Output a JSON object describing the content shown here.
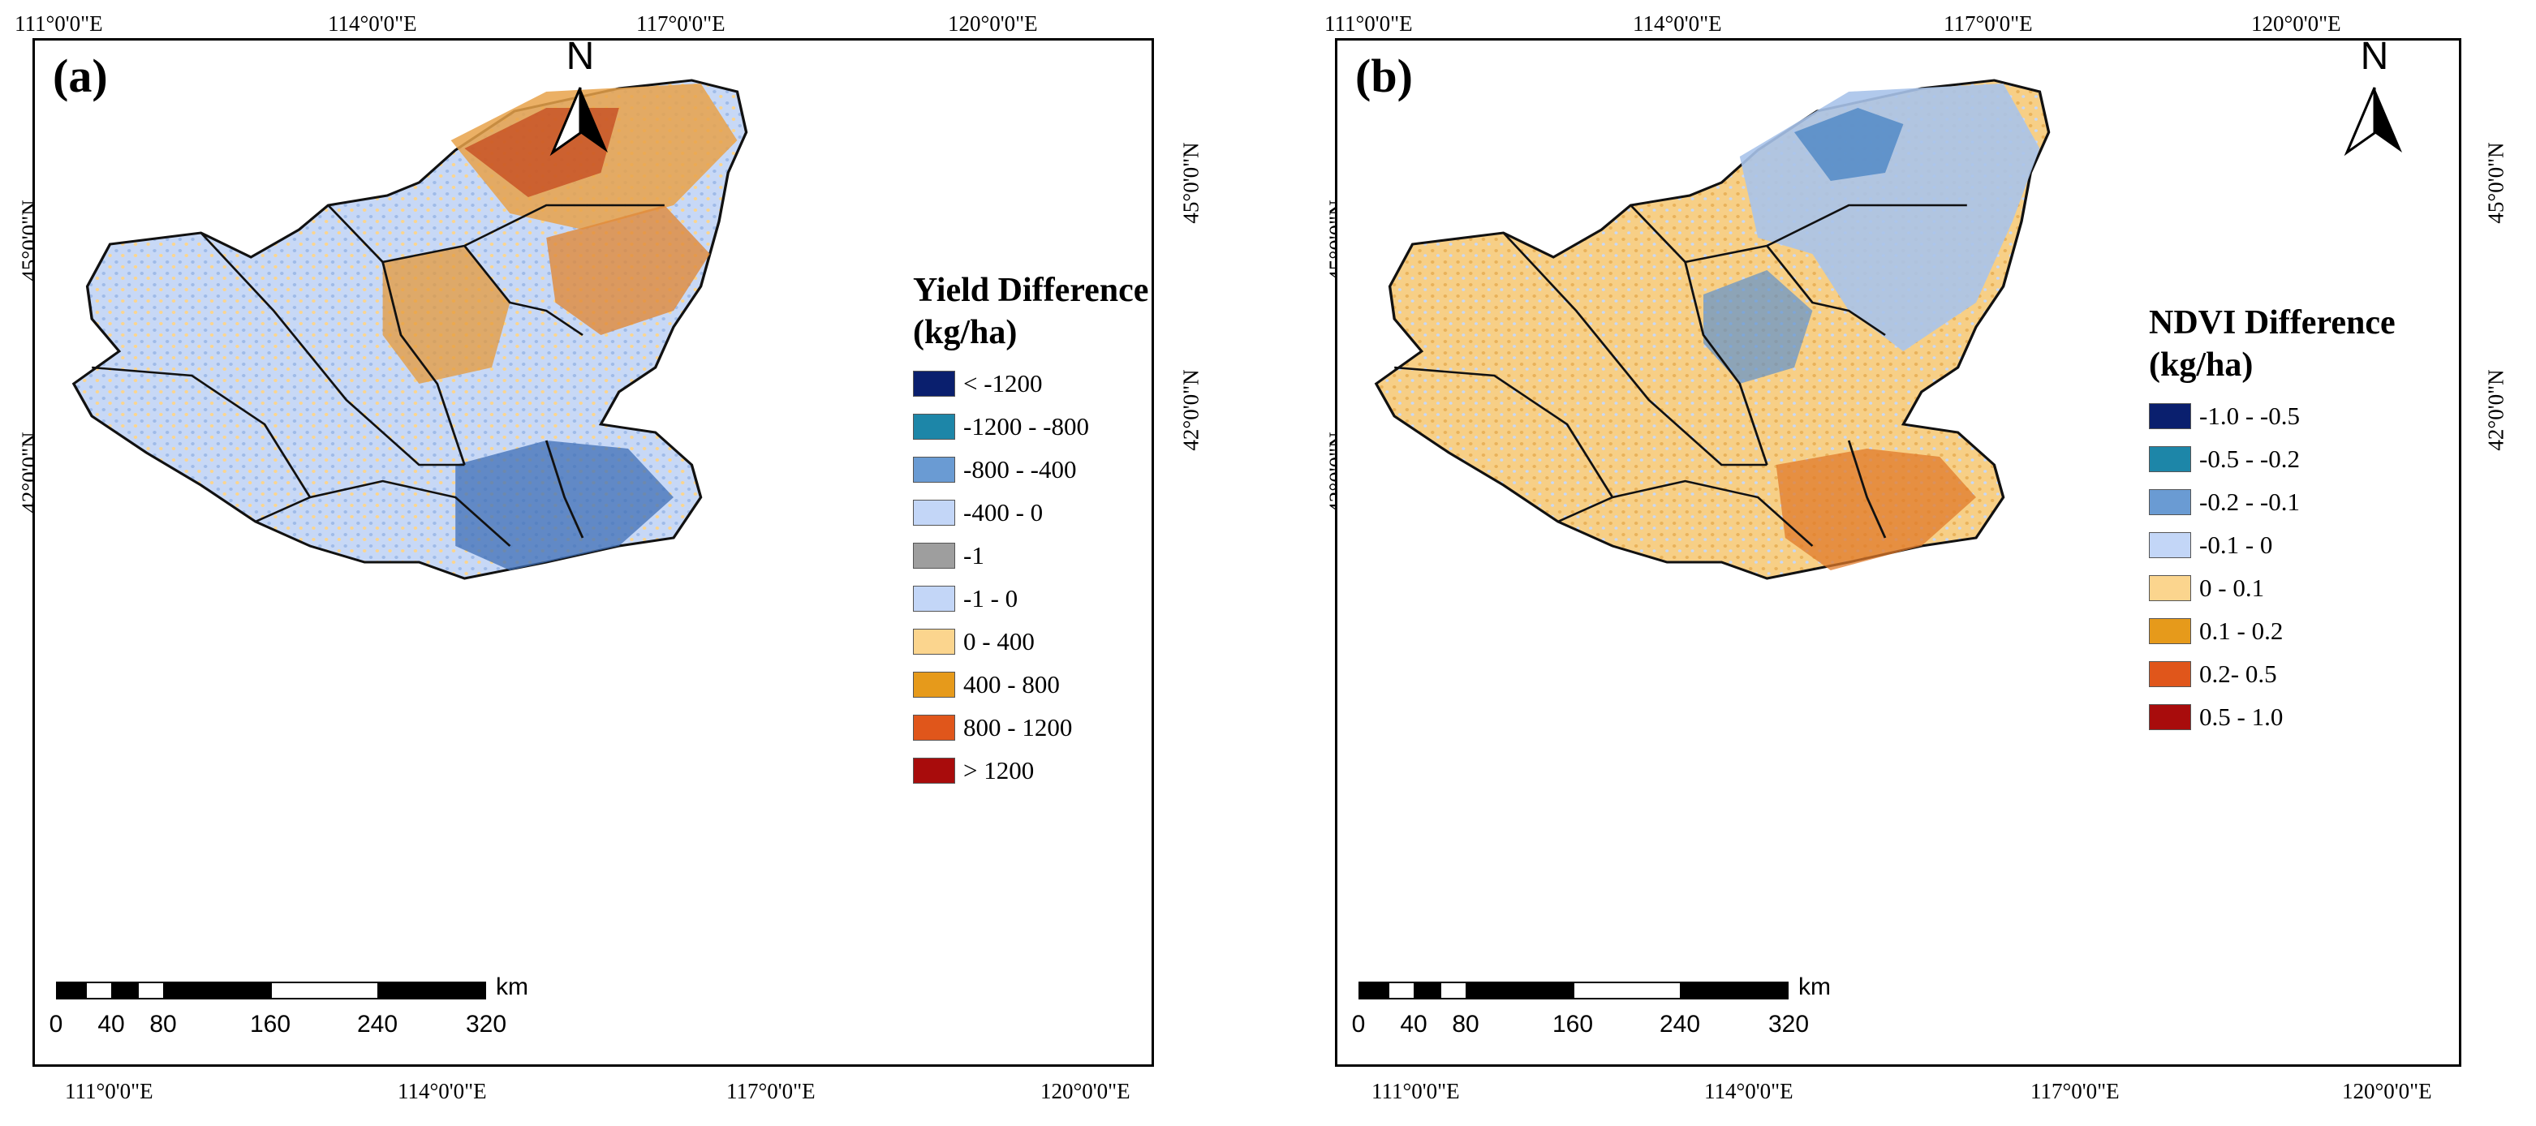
{
  "panels": [
    {
      "label": "(a)",
      "top_lon_labels": [
        "111°0'0\"E",
        "114°0'0\"E",
        "117°0'0\"E",
        "120°0'0\"E"
      ],
      "bottom_lon_labels": [
        "111°0'0\"E",
        "114°0'0\"E",
        "117°0'0\"E",
        "120°0'0\"E"
      ],
      "left_lat_labels": [
        "45°0'0\"N",
        "42°0'0\"N"
      ],
      "right_lat_labels": [
        "45°0'0\"N",
        "42°0'0\"N"
      ],
      "north_label": "N",
      "legend": {
        "title_line1": "Yield Difference",
        "title_line2": "(kg/ha)",
        "items": [
          {
            "label": "< -1200",
            "color": "#0a1f6e"
          },
          {
            "label": "-1200 - -800",
            "color": "#1d86a8"
          },
          {
            "label": "-800 - -400",
            "color": "#6a9bd3"
          },
          {
            "label": "-400 - 0",
            "color": "#c3d6f7"
          },
          {
            "label": "-1",
            "color": "#9e9e9e"
          },
          {
            "label": "-1 - 0",
            "color": "#c3d6f7"
          },
          {
            "label": "0 - 400",
            "color": "#fbd58e"
          },
          {
            "label": "400 - 800",
            "color": "#e69a1b"
          },
          {
            "label": "800 - 1200",
            "color": "#e0561b"
          },
          {
            "label": "> 1200",
            "color": "#a80c0c"
          }
        ]
      },
      "scale": {
        "unit": "km",
        "ticks": [
          "0",
          "40",
          "80",
          "160",
          "240",
          "320"
        ]
      }
    },
    {
      "label": "(b)",
      "top_lon_labels": [
        "111°0'0\"E",
        "114°0'0\"E",
        "117°0'0\"E",
        "120°0'0\"E"
      ],
      "bottom_lon_labels": [
        "111°0'0\"E",
        "114°0'0\"E",
        "117°0'0\"E",
        "120°0'0\"E"
      ],
      "left_lat_labels": [
        "45°0'0\"N",
        "42°0'0\"N"
      ],
      "right_lat_labels": [
        "45°0'0\"N",
        "42°0'0\"N"
      ],
      "north_label": "N",
      "legend": {
        "title_line1": "NDVI Difference",
        "title_line2": "(kg/ha)",
        "items": [
          {
            "label": "-1.0 - -0.5",
            "color": "#0a1f6e"
          },
          {
            "label": "-0.5 - -0.2",
            "color": "#1d86a8"
          },
          {
            "label": "-0.2 - -0.1",
            "color": "#6a9bd3"
          },
          {
            "label": "-0.1 - 0",
            "color": "#c3d6f7"
          },
          {
            "label": "0 - 0.1",
            "color": "#fbd58e"
          },
          {
            "label": "0.1 - 0.2",
            "color": "#e69a1b"
          },
          {
            "label": "0.2- 0.5",
            "color": "#e0561b"
          },
          {
            "label": "0.5 - 1.0",
            "color": "#a80c0c"
          }
        ]
      },
      "scale": {
        "unit": "km",
        "ticks": [
          "0",
          "40",
          "80",
          "160",
          "240",
          "320"
        ]
      }
    }
  ]
}
